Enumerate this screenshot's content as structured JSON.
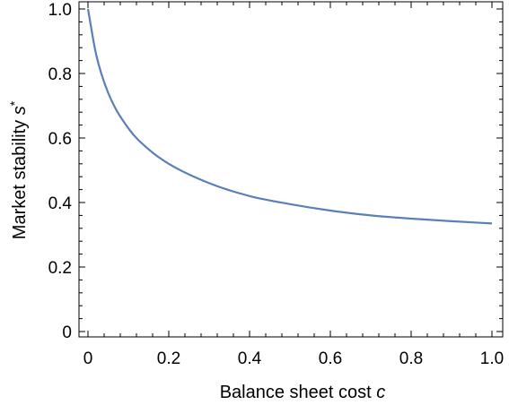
{
  "chart_data": {
    "type": "line",
    "title": "",
    "xlabel": "Balance sheet cost",
    "xlabel_var": "c",
    "ylabel": "Market stability",
    "ylabel_var": "s",
    "ylabel_sup": "*",
    "xlim": [
      0,
      1
    ],
    "ylim": [
      0,
      1
    ],
    "x_ticks": [
      0,
      0.2,
      0.4,
      0.6,
      0.8,
      1.0
    ],
    "x_tick_labels": [
      "0",
      "0.2",
      "0.4",
      "0.6",
      "0.8",
      "1.0"
    ],
    "y_ticks": [
      0,
      0.2,
      0.4,
      0.6,
      0.8,
      1.0
    ],
    "y_tick_labels": [
      "0",
      "0.2",
      "0.4",
      "0.6",
      "0.8",
      "1.0"
    ],
    "grid": false,
    "line_color": "#5b7fb8",
    "series": [
      {
        "x": [
          0,
          0.02,
          0.05,
          0.1,
          0.15,
          0.2,
          0.3,
          0.4,
          0.5,
          0.6,
          0.7,
          0.8,
          0.9,
          1.0
        ],
        "values": [
          1.0,
          0.86,
          0.74,
          0.63,
          0.565,
          0.52,
          0.46,
          0.42,
          0.395,
          0.375,
          0.36,
          0.35,
          0.342,
          0.335
        ]
      }
    ]
  }
}
